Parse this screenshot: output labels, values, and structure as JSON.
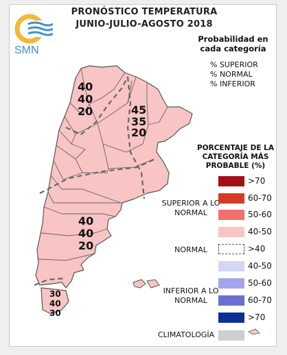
{
  "title_line1": "PRONÓSTICO TEMPERATURA",
  "title_line2": "JUNIO-JULIO-AGOSTO 2018",
  "logo_text": "SMN",
  "legend_header": "Probabilidad en cada categoría",
  "pct_labels": [
    "% SUPERIOR",
    "% NORMAL",
    "% INFERIOR"
  ],
  "scale_title": "PORCENTAJE DE LA CATEGORÍA MÁS PROBABLE (%)",
  "groups": {
    "superior": "SUPERIOR A LO NORMAL",
    "normal": "NORMAL",
    "inferior": "INFERIOR A LO NORMAL",
    "climatologia": "CLIMATOLOGÍA"
  },
  "scale": [
    {
      "label": ">70",
      "color": "#a50f15"
    },
    {
      "label": "60-70",
      "color": "#d63a26"
    },
    {
      "label": "50-60",
      "color": "#f2706d"
    },
    {
      "label": "40-50",
      "color": "#f8c4c4"
    },
    {
      "label": ">40",
      "color": "#ffffff"
    },
    {
      "label": "40-50",
      "color": "#d4d6f3"
    },
    {
      "label": "50-60",
      "color": "#a3a6ec"
    },
    {
      "label": "60-70",
      "color": "#6b6fd1"
    },
    {
      "label": ">70",
      "color": "#0c2f95"
    },
    {
      "label": "",
      "color": "#cfcfcf"
    }
  ],
  "map_regions": [
    {
      "name": "noroeste",
      "values": [
        "40",
        "40",
        "20"
      ]
    },
    {
      "name": "litoral",
      "values": [
        "45",
        "35",
        "20"
      ]
    },
    {
      "name": "patagonia",
      "values": [
        "40",
        "40",
        "20"
      ]
    },
    {
      "name": "tierra-del-fuego",
      "values": [
        "30",
        "40",
        "30"
      ]
    }
  ],
  "colors": {
    "map_fill": "#f8c4c4",
    "border": "#555555",
    "dashed": "#666666"
  }
}
